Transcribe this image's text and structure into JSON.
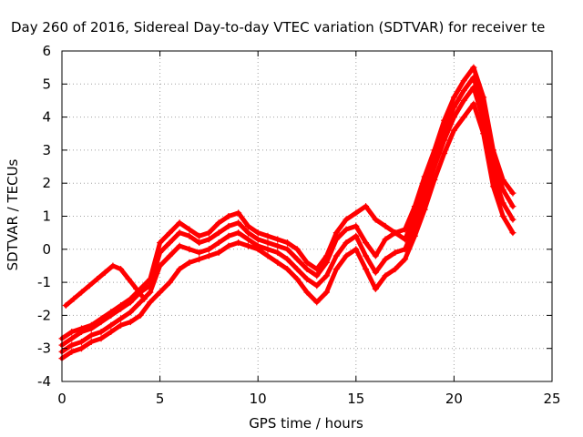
{
  "chart_data": {
    "type": "scatter",
    "title": "Day 260 of 2016, Sidereal Day-to-day VTEC variation (SDTVAR) for receiver te",
    "xlabel": "GPS time / hours",
    "ylabel": "SDTVAR / TECUs",
    "xlim": [
      0,
      25
    ],
    "ylim": [
      -4,
      6
    ],
    "xticks": [
      0,
      5,
      10,
      15,
      20,
      25
    ],
    "yticks": [
      -4,
      -3,
      -2,
      -1,
      0,
      1,
      2,
      3,
      4,
      5,
      6
    ],
    "grid": true,
    "marker": "+",
    "series_color": "#ff0000",
    "series": [
      {
        "x": [
          0.0,
          0.5,
          1.0,
          1.5,
          2.0,
          2.5,
          3.0,
          3.5,
          4.0,
          4.5,
          5.0,
          5.5,
          6.0,
          6.5,
          7.0,
          7.5,
          8.0,
          8.5,
          9.0,
          9.5,
          10.0,
          10.5,
          11.0,
          11.5,
          12.0,
          12.5,
          13.0,
          13.5,
          14.0,
          14.5,
          15.0,
          15.5,
          16.0,
          16.5,
          17.0,
          17.5,
          18.0,
          18.5,
          19.0,
          19.5,
          20.0,
          20.5,
          21.0,
          21.5,
          22.0,
          22.5,
          23.0
        ],
        "y": [
          -2.7,
          -2.5,
          -2.4,
          -2.3,
          -2.1,
          -1.9,
          -1.7,
          -1.5,
          -1.2,
          -0.9,
          0.2,
          0.5,
          0.8,
          0.6,
          0.4,
          0.5,
          0.8,
          1.0,
          1.1,
          0.7,
          0.5,
          0.4,
          0.3,
          0.2,
          0.0,
          -0.4,
          -0.6,
          -0.2,
          0.5,
          0.9,
          1.1,
          1.3,
          0.9,
          0.7,
          0.5,
          0.6,
          1.3,
          2.2,
          3.0,
          3.9,
          4.6,
          5.1,
          5.5,
          4.6,
          3.0,
          2.1,
          1.7
        ]
      },
      {
        "x": [
          0.0,
          0.5,
          1.0,
          1.5,
          2.0,
          2.5,
          3.0,
          3.5,
          4.0,
          4.5,
          5.0,
          5.5,
          6.0,
          6.5,
          7.0,
          7.5,
          8.0,
          8.5,
          9.0,
          9.5,
          10.0,
          10.5,
          11.0,
          11.5,
          12.0,
          12.5,
          13.0,
          13.5,
          14.0,
          14.5,
          15.0,
          15.5,
          16.0,
          16.5,
          17.0,
          17.5,
          18.0,
          18.5,
          19.0,
          19.5,
          20.0,
          20.5,
          21.0,
          21.5,
          22.0,
          22.5,
          23.0
        ],
        "y": [
          -2.9,
          -2.7,
          -2.5,
          -2.4,
          -2.2,
          -2.0,
          -1.8,
          -1.6,
          -1.3,
          -1.1,
          -0.1,
          0.2,
          0.5,
          0.4,
          0.2,
          0.3,
          0.5,
          0.7,
          0.8,
          0.5,
          0.3,
          0.2,
          0.1,
          0.0,
          -0.3,
          -0.6,
          -0.8,
          -0.4,
          0.3,
          0.6,
          0.7,
          0.2,
          -0.2,
          0.3,
          0.5,
          0.3,
          1.0,
          1.9,
          2.8,
          3.6,
          4.3,
          4.8,
          5.2,
          4.2,
          2.7,
          1.8,
          1.3
        ]
      },
      {
        "x": [
          0.0,
          0.5,
          1.0,
          1.5,
          2.0,
          2.5,
          3.0,
          3.5,
          4.0,
          4.5,
          5.0,
          5.5,
          6.0,
          6.5,
          7.0,
          7.5,
          8.0,
          8.5,
          9.0,
          9.5,
          10.0,
          10.5,
          11.0,
          11.5,
          12.0,
          12.5,
          13.0,
          13.5,
          14.0,
          14.5,
          15.0,
          15.5,
          16.0,
          16.5,
          17.0,
          17.5,
          18.0,
          18.5,
          19.0,
          19.5,
          20.0,
          20.5,
          21.0,
          21.5,
          22.0,
          22.5,
          23.0
        ],
        "y": [
          -3.1,
          -2.9,
          -2.8,
          -2.6,
          -2.5,
          -2.3,
          -2.1,
          -1.9,
          -1.6,
          -1.3,
          -0.5,
          -0.2,
          0.1,
          0.0,
          -0.1,
          0.0,
          0.2,
          0.4,
          0.5,
          0.3,
          0.1,
          0.0,
          -0.1,
          -0.3,
          -0.6,
          -0.9,
          -1.1,
          -0.8,
          -0.2,
          0.2,
          0.4,
          -0.2,
          -0.7,
          -0.3,
          -0.1,
          0.0,
          0.7,
          1.6,
          2.5,
          3.3,
          4.0,
          4.5,
          4.9,
          3.9,
          2.3,
          1.4,
          0.9
        ]
      },
      {
        "x": [
          0.0,
          0.5,
          1.0,
          1.5,
          2.0,
          2.5,
          3.0,
          3.5,
          4.0,
          4.5,
          5.0,
          5.5,
          6.0,
          6.5,
          7.0,
          7.5,
          8.0,
          8.5,
          9.0,
          9.5,
          10.0,
          10.5,
          11.0,
          11.5,
          12.0,
          12.5,
          13.0,
          13.5,
          14.0,
          14.5,
          15.0,
          15.5,
          16.0,
          16.5,
          17.0,
          17.5,
          18.0,
          18.5,
          19.0,
          19.5,
          20.0,
          20.5,
          21.0,
          21.5,
          22.0,
          22.5,
          23.0
        ],
        "y": [
          -3.3,
          -3.1,
          -3.0,
          -2.8,
          -2.7,
          -2.5,
          -2.3,
          -2.2,
          -2.0,
          -1.6,
          -1.3,
          -1.0,
          -0.6,
          -0.4,
          -0.3,
          -0.2,
          -0.1,
          0.1,
          0.2,
          0.1,
          0.0,
          -0.2,
          -0.4,
          -0.6,
          -0.9,
          -1.3,
          -1.6,
          -1.3,
          -0.6,
          -0.2,
          0.0,
          -0.6,
          -1.2,
          -0.8,
          -0.6,
          -0.3,
          0.4,
          1.2,
          2.1,
          2.9,
          3.6,
          4.0,
          4.4,
          3.5,
          1.9,
          1.0,
          0.5
        ]
      },
      {
        "x": [
          0.2,
          0.6,
          1.0,
          1.4,
          1.8,
          2.2,
          2.6,
          3.0,
          3.4,
          3.8,
          4.2
        ],
        "y": [
          -1.7,
          -1.5,
          -1.3,
          -1.1,
          -0.9,
          -0.7,
          -0.5,
          -0.6,
          -0.9,
          -1.2,
          -1.5
        ]
      }
    ]
  }
}
